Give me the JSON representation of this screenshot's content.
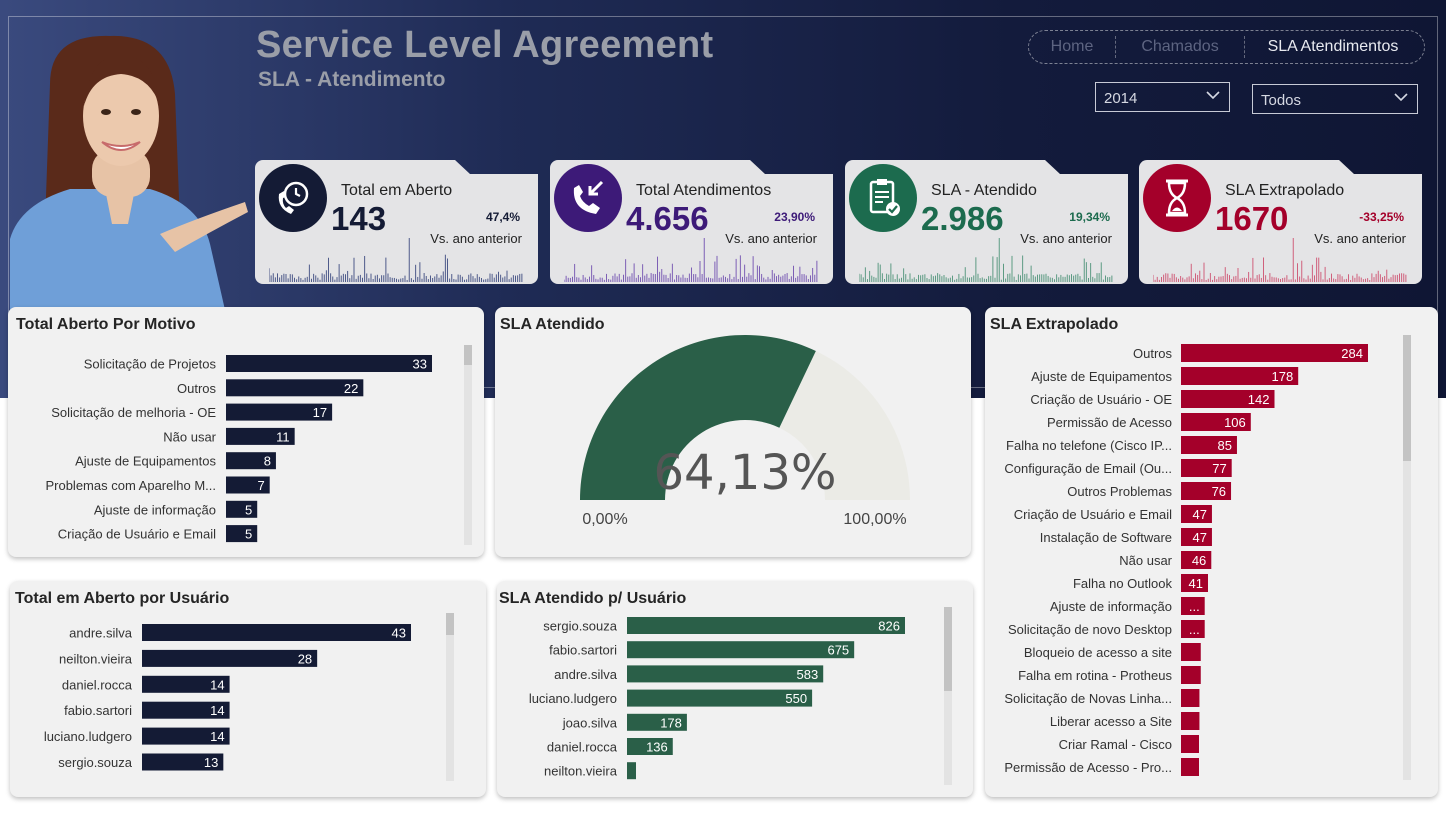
{
  "header": {
    "title": "Service Level Agreement",
    "subtitle": "SLA - Atendimento",
    "nav": [
      {
        "label": "Home",
        "active": false
      },
      {
        "label": "Chamados",
        "active": false
      },
      {
        "label": "SLA Atendimentos",
        "active": true
      }
    ],
    "filters": {
      "year": "2014",
      "scope": "Todos"
    }
  },
  "kpis": [
    {
      "id": "aberto",
      "label": "Total em Aberto",
      "value": "143",
      "pct": "47,4%",
      "vs": "Vs. ano anterior",
      "icon": "phone-clock-icon",
      "color": "#141b35",
      "value_color": "#141b35",
      "pct_color": "#141b35",
      "spark_color": "#4e5a8a"
    },
    {
      "id": "atendimentos",
      "label": "Total Atendimentos",
      "value": "4.656",
      "pct": "23,90%",
      "vs": "Vs. ano anterior",
      "icon": "phone-incoming-icon",
      "color": "#3d1a78",
      "value_color": "#3d1a78",
      "pct_color": "#3d1a78",
      "spark_color": "#7d5fb5"
    },
    {
      "id": "atendido",
      "label": "SLA - Atendido",
      "value": "2.986",
      "pct": "19,34%",
      "vs": "Vs. ano anterior",
      "icon": "clipboard-check-icon",
      "color": "#1c6b4e",
      "value_color": "#1c6b4e",
      "pct_color": "#1c6b4e",
      "spark_color": "#5d9b83"
    },
    {
      "id": "extrapolado",
      "label": "SLA Extrapolado",
      "value": "1670",
      "pct": "-33,25%",
      "vs": "Vs. ano anterior",
      "icon": "hourglass-icon",
      "color": "#a4002a",
      "value_color": "#a4002a",
      "pct_color": "#a4002a",
      "spark_color": "#d0607c"
    }
  ],
  "panels": {
    "motivo": {
      "title": "Total Aberto Por Motivo",
      "bar_color": "#141b35",
      "chart_data": {
        "type": "bar",
        "orientation": "horizontal",
        "categories": [
          "Solicitação de Projetos",
          "Outros",
          "Solicitação de melhoria - OE",
          "Não usar",
          "Ajuste de Equipamentos",
          "Problemas com Aparelho M...",
          "Ajuste de informação",
          "Criação de Usuário e Email"
        ],
        "values": [
          33,
          22,
          17,
          11,
          8,
          7,
          5,
          5
        ],
        "labels": [
          "33",
          "22",
          "17",
          "11",
          "8",
          "7",
          "5",
          "5"
        ]
      }
    },
    "gauge": {
      "title": "SLA Atendido",
      "value": 0.6413,
      "value_label": "64,13%",
      "min_label": "0,00%",
      "max_label": "100,00%",
      "color": "#2a5f48",
      "track_color": "#ebebe6"
    },
    "usuario": {
      "title": "Total em Aberto por Usuário",
      "bar_color": "#141b35",
      "chart_data": {
        "type": "bar",
        "orientation": "horizontal",
        "categories": [
          "andre.silva",
          "neilton.vieira",
          "daniel.rocca",
          "fabio.sartori",
          "luciano.ludgero",
          "sergio.souza"
        ],
        "values": [
          43,
          28,
          14,
          14,
          14,
          13
        ],
        "labels": [
          "43",
          "28",
          "14",
          "14",
          "14",
          "13"
        ]
      }
    },
    "atendido_usuario": {
      "title": "SLA Atendido p/ Usuário",
      "bar_color": "#2a5f48",
      "chart_data": {
        "type": "bar",
        "orientation": "horizontal",
        "categories": [
          "sergio.souza",
          "fabio.sartori",
          "andre.silva",
          "luciano.ludgero",
          "joao.silva",
          "daniel.rocca",
          "neilton.vieira"
        ],
        "values": [
          826,
          675,
          583,
          550,
          178,
          136,
          25
        ],
        "labels": [
          "826",
          "675",
          "583",
          "550",
          "178",
          "136",
          ""
        ]
      }
    },
    "extrapolado": {
      "title": "SLA Extrapolado",
      "bar_color": "#a4002a",
      "chart_data": {
        "type": "bar",
        "orientation": "horizontal",
        "categories": [
          "Outros",
          "Ajuste de Equipamentos",
          "Criação de Usuário - OE",
          "Permissão de Acesso",
          "Falha no telefone (Cisco IP...",
          "Configuração de Email (Ou...",
          "Outros Problemas",
          "Criação de Usuário e Email",
          "Instalação de Software",
          "Não usar",
          "Falha no Outlook",
          "Ajuste de informação",
          "Solicitação de novo Desktop",
          "Bloqueio de acesso a site",
          "Falha em rotina - Protheus",
          "Solicitação de Novas Linha...",
          "Liberar acesso a Site",
          "Criar Ramal - Cisco",
          "Permissão de Acesso - Pro..."
        ],
        "values": [
          284,
          178,
          142,
          106,
          85,
          77,
          76,
          47,
          47,
          46,
          41,
          36,
          36,
          30,
          30,
          28,
          28,
          27,
          27
        ],
        "labels": [
          "284",
          "178",
          "142",
          "106",
          "85",
          "77",
          "76",
          "47",
          "47",
          "46",
          "41",
          "...",
          "...",
          "",
          "",
          "",
          "",
          "",
          ""
        ]
      }
    }
  }
}
